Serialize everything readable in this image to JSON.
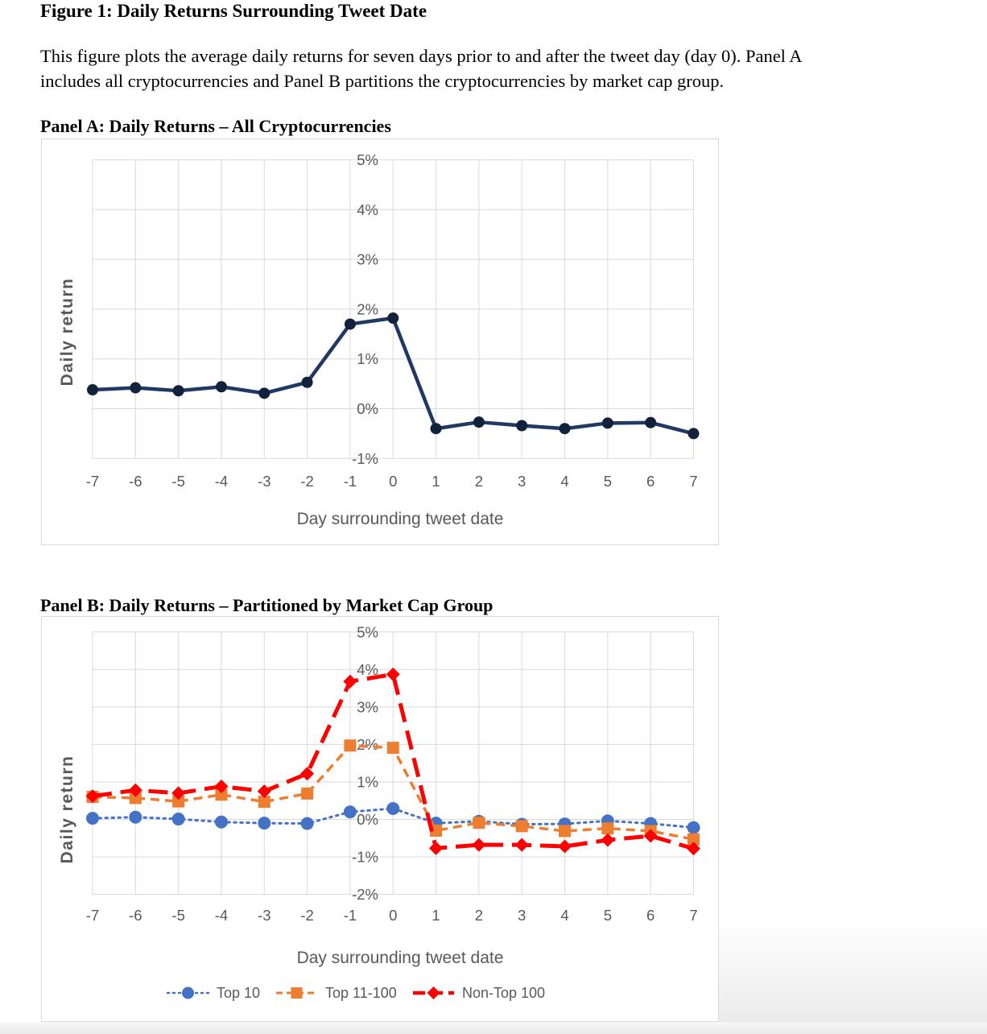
{
  "document": {
    "title": "Figure 1: Daily Returns Surrounding Tweet Date",
    "description_line1": "This figure plots the average daily returns for seven days prior to and after the tweet day (day 0). Panel A",
    "description_line2": "includes all cryptocurrencies and Panel B partitions the cryptocurrencies by market cap group.",
    "panel_a_heading": "Panel A: Daily Returns – All Cryptocurrencies",
    "panel_b_heading": "Panel B: Daily Returns – Partitioned by Market Cap Group"
  },
  "colors": {
    "gridline": "#D9D9D9",
    "axis_text": "#595959",
    "panel_a_line": "#1F3864",
    "panel_a_marker": "#12213C",
    "top10_blue": "#4472C4",
    "top11_100_orange": "#ED7D31",
    "nontop100_red": "#FF0000"
  },
  "chart_data": [
    {
      "id": "panel_a",
      "type": "line",
      "xlabel": "Day surrounding tweet date",
      "ylabel": "Daily return",
      "x": [
        -7,
        -6,
        -5,
        -4,
        -3,
        -2,
        -1,
        0,
        1,
        2,
        3,
        4,
        5,
        6,
        7
      ],
      "ylim": [
        -1,
        5
      ],
      "ytick_values": [
        5,
        4,
        3,
        2,
        1,
        0,
        -1
      ],
      "ytick_suffix": "%",
      "grid": true,
      "legend": false,
      "series": [
        {
          "name": "All cryptocurrencies",
          "color": "#1F3864",
          "marker_color": "#12213C",
          "marker": "circle",
          "line_style": "solid",
          "values": [
            0.38,
            0.42,
            0.36,
            0.44,
            0.31,
            0.53,
            1.7,
            1.82,
            -0.4,
            -0.27,
            -0.34,
            -0.4,
            -0.29,
            -0.28,
            -0.5
          ]
        }
      ]
    },
    {
      "id": "panel_b",
      "type": "line",
      "xlabel": "Day surrounding tweet date",
      "ylabel": "Daily return",
      "x": [
        -7,
        -6,
        -5,
        -4,
        -3,
        -2,
        -1,
        0,
        1,
        2,
        3,
        4,
        5,
        6,
        7
      ],
      "ylim": [
        -2,
        5
      ],
      "ytick_values": [
        5,
        4,
        3,
        2,
        1,
        0,
        -1,
        -2
      ],
      "ytick_suffix": "%",
      "grid": true,
      "legend": true,
      "legend_position": "bottom",
      "series": [
        {
          "name": "Top 10",
          "color": "#4472C4",
          "marker": "circle",
          "line_style": "dotted",
          "values": [
            0.03,
            0.06,
            0.01,
            -0.07,
            -0.1,
            -0.11,
            0.2,
            0.29,
            -0.1,
            -0.05,
            -0.13,
            -0.12,
            -0.04,
            -0.11,
            -0.22
          ]
        },
        {
          "name": "Top 11-100",
          "color": "#ED7D31",
          "marker": "square",
          "line_style": "dashed",
          "values": [
            0.6,
            0.57,
            0.48,
            0.66,
            0.47,
            0.69,
            1.97,
            1.91,
            -0.3,
            -0.09,
            -0.18,
            -0.31,
            -0.24,
            -0.31,
            -0.53
          ]
        },
        {
          "name": "Non-Top 100",
          "color": "#FF0000",
          "marker": "diamond",
          "line_style": "long-dash",
          "values": [
            0.62,
            0.78,
            0.7,
            0.88,
            0.75,
            1.22,
            3.68,
            3.87,
            -0.77,
            -0.68,
            -0.68,
            -0.72,
            -0.55,
            -0.44,
            -0.78
          ]
        }
      ]
    }
  ]
}
